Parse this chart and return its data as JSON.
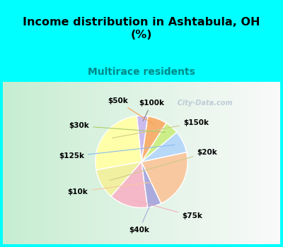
{
  "title": "Income distribution in Ashtabula, OH\n(%)",
  "subtitle": "Multirace residents",
  "labels": [
    "$100k",
    "$150k",
    "$20k",
    "$75k",
    "$40k",
    "$10k",
    "$125k",
    "$30k",
    "$50k"
  ],
  "sizes": [
    4,
    27,
    11,
    14,
    5,
    22,
    8,
    5,
    7
  ],
  "colors": [
    "#ccbbee",
    "#ffffaa",
    "#f0f0a0",
    "#f4b8c8",
    "#aaaadd",
    "#f8c8a0",
    "#b8d8f8",
    "#ccee88",
    "#f8b070"
  ],
  "background_top": "#00ffff",
  "chart_bg_left": "#c8e8d0",
  "chart_bg_right": "#e8f8f0",
  "title_color": "#000000",
  "subtitle_color": "#008888",
  "label_color": "#000000",
  "startangle": 82,
  "watermark": "  City-Data.com"
}
